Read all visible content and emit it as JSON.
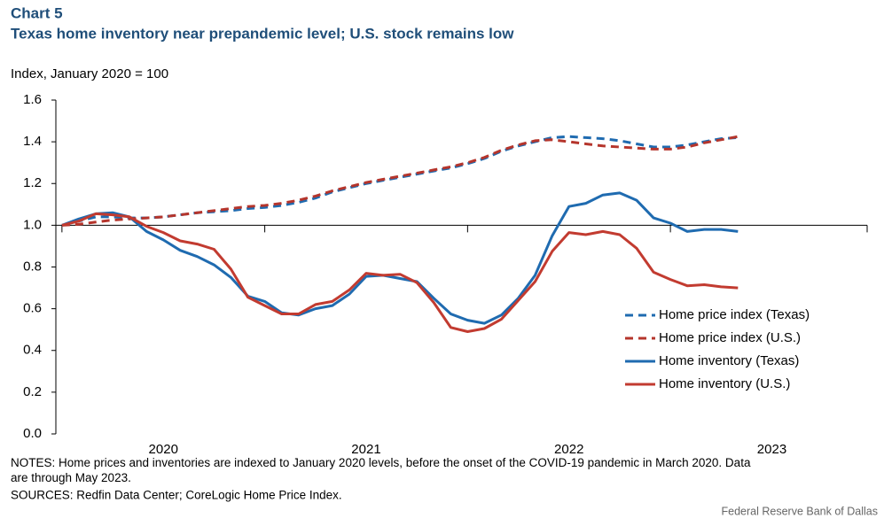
{
  "chart_data": {
    "type": "line",
    "chart_label": "Chart 5",
    "title": "Texas home inventory near prepandemic level; U.S. stock remains low",
    "y_axis_label": "Index, January 2020 = 100",
    "notes": "NOTES: Home prices and inventories are indexed to January 2020 levels, before the onset of the COVID-19 pandemic in March 2020. Data are through May 2023.",
    "sources": "SOURCES: Redfin Data Center; CoreLogic Home Price Index.",
    "credit": "Federal Reserve Bank of Dallas",
    "x": [
      2020,
      2020.083,
      2020.167,
      2020.25,
      2020.333,
      2020.417,
      2020.5,
      2020.583,
      2020.667,
      2020.75,
      2020.833,
      2020.917,
      2021,
      2021.083,
      2021.167,
      2021.25,
      2021.333,
      2021.417,
      2021.5,
      2021.583,
      2021.667,
      2021.75,
      2021.833,
      2021.917,
      2022,
      2022.083,
      2022.167,
      2022.25,
      2022.333,
      2022.417,
      2022.5,
      2022.583,
      2022.667,
      2022.75,
      2022.833,
      2022.917,
      2023,
      2023.083,
      2023.167,
      2023.25,
      2023.333
    ],
    "series": [
      {
        "name": "Home price index (Texas)",
        "color": "#1f6bb0",
        "dashed": true,
        "values": [
          1.0,
          1.02,
          1.04,
          1.04,
          1.035,
          1.035,
          1.04,
          1.05,
          1.06,
          1.065,
          1.07,
          1.08,
          1.085,
          1.095,
          1.11,
          1.13,
          1.16,
          1.18,
          1.2,
          1.215,
          1.23,
          1.245,
          1.26,
          1.275,
          1.295,
          1.32,
          1.355,
          1.38,
          1.4,
          1.42,
          1.425,
          1.42,
          1.415,
          1.405,
          1.39,
          1.375,
          1.375,
          1.385,
          1.4,
          1.415,
          1.42
        ]
      },
      {
        "name": "Home price index (U.S.)",
        "color": "#b5352c",
        "dashed": true,
        "values": [
          1.0,
          1.005,
          1.015,
          1.025,
          1.03,
          1.035,
          1.04,
          1.05,
          1.06,
          1.07,
          1.08,
          1.09,
          1.095,
          1.105,
          1.12,
          1.14,
          1.165,
          1.185,
          1.205,
          1.22,
          1.235,
          1.25,
          1.265,
          1.28,
          1.3,
          1.325,
          1.36,
          1.385,
          1.405,
          1.41,
          1.4,
          1.39,
          1.38,
          1.375,
          1.37,
          1.365,
          1.365,
          1.375,
          1.395,
          1.41,
          1.425
        ]
      },
      {
        "name": "Home inventory (Texas)",
        "color": "#1f6bb0",
        "dashed": false,
        "values": [
          1.0,
          1.03,
          1.055,
          1.06,
          1.04,
          0.97,
          0.93,
          0.88,
          0.85,
          0.81,
          0.75,
          0.66,
          0.635,
          0.58,
          0.57,
          0.6,
          0.615,
          0.67,
          0.755,
          0.76,
          0.745,
          0.73,
          0.65,
          0.575,
          0.545,
          0.53,
          0.57,
          0.65,
          0.76,
          0.95,
          1.09,
          1.105,
          1.145,
          1.155,
          1.12,
          1.035,
          1.01,
          0.97,
          0.98,
          0.98,
          0.97
        ]
      },
      {
        "name": "Home inventory (U.S.)",
        "color": "#c23b30",
        "dashed": false,
        "values": [
          1.0,
          1.02,
          1.055,
          1.05,
          1.04,
          0.995,
          0.965,
          0.925,
          0.91,
          0.885,
          0.79,
          0.655,
          0.615,
          0.575,
          0.575,
          0.62,
          0.635,
          0.69,
          0.77,
          0.76,
          0.765,
          0.725,
          0.63,
          0.51,
          0.49,
          0.505,
          0.55,
          0.64,
          0.73,
          0.875,
          0.965,
          0.955,
          0.97,
          0.955,
          0.89,
          0.775,
          0.74,
          0.71,
          0.715,
          0.705,
          0.7
        ]
      }
    ],
    "xlim": [
      2019.97,
      2023.97
    ],
    "xticks": [
      2020,
      2021,
      2022,
      2023
    ],
    "ylim": [
      0,
      1.6
    ],
    "yticks": [
      {
        "value": 0,
        "label": "0.0"
      },
      {
        "value": 0.2,
        "label": "0.2"
      },
      {
        "value": 0.4,
        "label": "0.4"
      },
      {
        "value": 0.6,
        "label": "0.6"
      },
      {
        "value": 0.8,
        "label": "0.8"
      },
      {
        "value": 1,
        "label": "1.0"
      },
      {
        "value": 1.2,
        "label": "1.2"
      },
      {
        "value": 1.4,
        "label": "1.4"
      },
      {
        "value": 1.6,
        "label": "1.6"
      }
    ],
    "x_axis_at": 1,
    "grid": false,
    "legend": "right"
  }
}
